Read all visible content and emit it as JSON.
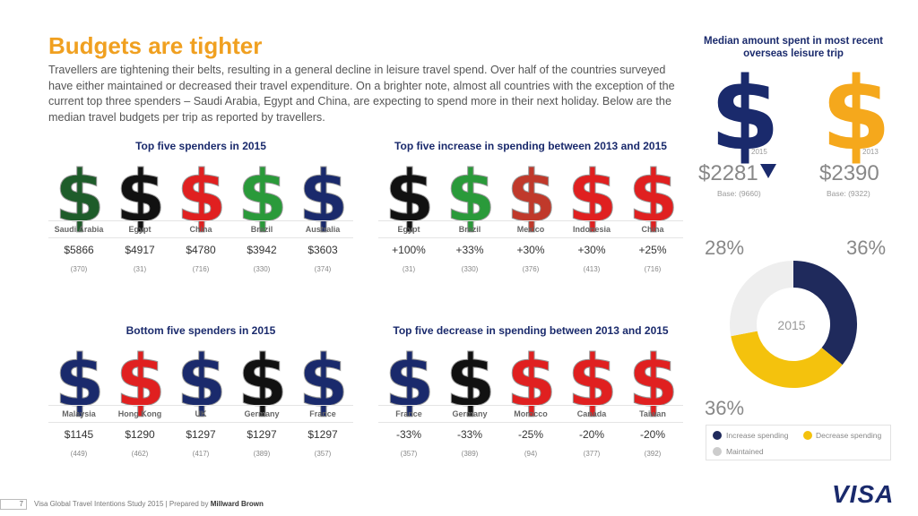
{
  "title": "Budgets are tighter",
  "intro": "Travellers are tightening their belts, resulting in a general decline in leisure travel spend. Over half of the countries surveyed have either maintained or decreased their travel expenditure. On a brighter note, almost all countries with the exception of the current top three spenders – Saudi Arabia, Egypt and China, are expecting to spend more in their next holiday. Below are the median travel budgets per trip as reported by travellers.",
  "panels": [
    {
      "title": "Top five spenders in 2015",
      "items": [
        {
          "country": "Saudi Arabia",
          "value": "$5866",
          "base": "(370)",
          "color": "#1e5c2a"
        },
        {
          "country": "Egypt",
          "value": "$4917",
          "base": "(31)",
          "color": "#111111"
        },
        {
          "country": "China",
          "value": "$4780",
          "base": "(716)",
          "color": "#e02020"
        },
        {
          "country": "Brazil",
          "value": "$3942",
          "base": "(330)",
          "color": "#2a9a3a"
        },
        {
          "country": "Australia",
          "value": "$3603",
          "base": "(374)",
          "color": "#1a2a6c"
        }
      ]
    },
    {
      "title": "Top five increase in spending between 2013 and 2015",
      "items": [
        {
          "country": "Egypt",
          "value": "+100%",
          "base": "(31)",
          "color": "#111111"
        },
        {
          "country": "Brazil",
          "value": "+33%",
          "base": "(330)",
          "color": "#2a9a3a"
        },
        {
          "country": "Mexico",
          "value": "+30%",
          "base": "(376)",
          "color": "#c0392b"
        },
        {
          "country": "Indonesia",
          "value": "+30%",
          "base": "(413)",
          "color": "#e02020"
        },
        {
          "country": "China",
          "value": "+25%",
          "base": "(716)",
          "color": "#e02020"
        }
      ]
    },
    {
      "title": "Bottom five spenders in 2015",
      "items": [
        {
          "country": "Malaysia",
          "value": "$1145",
          "base": "(449)",
          "color": "#1a2a6c"
        },
        {
          "country": "Hong Kong",
          "value": "$1290",
          "base": "(462)",
          "color": "#e02020"
        },
        {
          "country": "UK",
          "value": "$1297",
          "base": "(417)",
          "color": "#1a2a6c"
        },
        {
          "country": "Germany",
          "value": "$1297",
          "base": "(389)",
          "color": "#111111"
        },
        {
          "country": "France",
          "value": "$1297",
          "base": "(357)",
          "color": "#1a2a6c"
        }
      ]
    },
    {
      "title": "Top five decrease in spending between 2013 and 2015",
      "items": [
        {
          "country": "France",
          "value": "-33%",
          "base": "(357)",
          "color": "#1a2a6c"
        },
        {
          "country": "Germany",
          "value": "-33%",
          "base": "(389)",
          "color": "#111111"
        },
        {
          "country": "Morocco",
          "value": "-25%",
          "base": "(94)",
          "color": "#e02020"
        },
        {
          "country": "Canada",
          "value": "-20%",
          "base": "(377)",
          "color": "#e02020"
        },
        {
          "country": "Taiwan",
          "value": "-20%",
          "base": "(392)",
          "color": "#e02020"
        }
      ]
    }
  ],
  "side": {
    "title": "Median amount spent in most recent overseas leisure trip",
    "year_2015": "2015",
    "year_2013": "2013",
    "amount_2015": "$2281",
    "amount_2013": "$2390",
    "base_2015": "Base: (9660)",
    "base_2013": "Base: (9322)",
    "color_2015": "#1a2a6c",
    "color_2013": "#f5a81c"
  },
  "donut": {
    "center_label": "2015",
    "label_maintained": "28%",
    "label_increase": "36%",
    "label_decrease": "36%",
    "legend": {
      "increase": "Increase spending",
      "decrease": "Decrease spending",
      "maintained": "Maintained"
    }
  },
  "chart_data": [
    {
      "type": "pie",
      "title": "",
      "categories": [
        "Increase spending",
        "Decrease spending",
        "Maintained"
      ],
      "values": [
        36,
        36,
        28
      ],
      "colors": [
        "#1f2a5c",
        "#f4c20d",
        "#eeeeee"
      ]
    }
  ],
  "footer": {
    "page": "7",
    "text": "Visa Global Travel Intentions Study 2015 | Prepared by ",
    "bold": "Millward Brown"
  },
  "logo": "VISA"
}
